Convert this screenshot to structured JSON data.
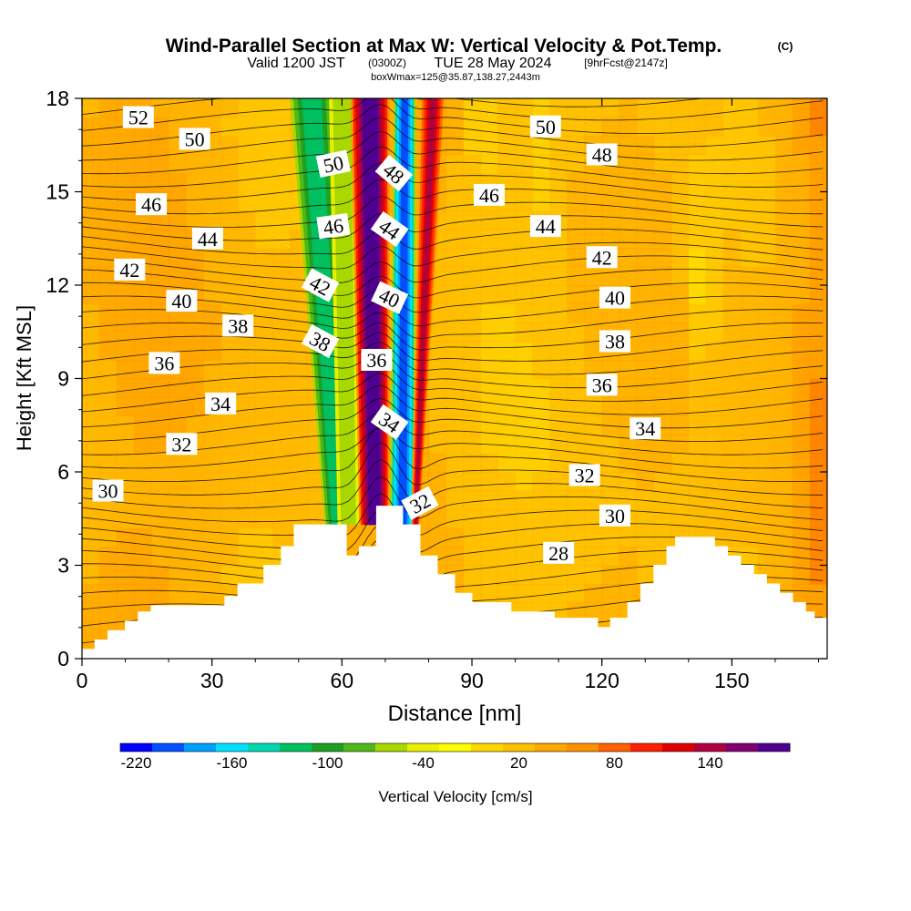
{
  "chart_data": {
    "type": "heatmap",
    "title": "Wind-Parallel Section at Max W: Vertical Velocity & Pot.Temp.",
    "title_suffix": "(C)",
    "subtitle": {
      "valid_prefix": "Valid 1200 JST",
      "valid_zulu": "(0300Z)",
      "valid_date": "TUE 28 May 2024",
      "forecast": "[9hrFcst@2147z]"
    },
    "box_info": "boxWmax=125@35.87,138.27,2443m",
    "xlabel": "Distance [nm]",
    "ylabel": "Height [Kft MSL]",
    "xlim": [
      0,
      172
    ],
    "ylim": [
      0,
      18
    ],
    "x_ticks": [
      "0",
      "30",
      "60",
      "90",
      "120",
      "150"
    ],
    "y_ticks": [
      "0",
      "3",
      "6",
      "9",
      "12",
      "15",
      "18"
    ],
    "colorbar": {
      "label": "Vertical Velocity [cm/s]",
      "tick_labels": [
        "-220",
        "-160",
        "-100",
        "-40",
        "20",
        "80",
        "140"
      ],
      "colors": [
        "#0000ff",
        "#0050ff",
        "#00a0ff",
        "#00e0ff",
        "#00d8b0",
        "#00c060",
        "#20a020",
        "#50b818",
        "#a8d800",
        "#e8f000",
        "#ffff00",
        "#ffd800",
        "#ffc000",
        "#ffa800",
        "#ff9000",
        "#ff6000",
        "#ff2000",
        "#e00000",
        "#b00040",
        "#800070",
        "#500090"
      ]
    },
    "terrain": [
      [
        0,
        0.3
      ],
      [
        3,
        0.3
      ],
      [
        3,
        0.6
      ],
      [
        6,
        0.6
      ],
      [
        6,
        0.9
      ],
      [
        10,
        0.9
      ],
      [
        10,
        1.2
      ],
      [
        13,
        1.2
      ],
      [
        13,
        1.5
      ],
      [
        16,
        1.5
      ],
      [
        16,
        1.7
      ],
      [
        33,
        1.7
      ],
      [
        33,
        2.0
      ],
      [
        36,
        2.0
      ],
      [
        36,
        2.4
      ],
      [
        42,
        2.4
      ],
      [
        42,
        3.0
      ],
      [
        46,
        3.0
      ],
      [
        46,
        3.6
      ],
      [
        49,
        3.6
      ],
      [
        49,
        4.3
      ],
      [
        61,
        4.3
      ],
      [
        61,
        3.3
      ],
      [
        64,
        3.3
      ],
      [
        64,
        3.6
      ],
      [
        68,
        3.6
      ],
      [
        68,
        4.9
      ],
      [
        74,
        4.9
      ],
      [
        74,
        4.3
      ],
      [
        78,
        4.3
      ],
      [
        78,
        3.3
      ],
      [
        82,
        3.3
      ],
      [
        82,
        2.7
      ],
      [
        86,
        2.7
      ],
      [
        86,
        2.1
      ],
      [
        90,
        2.1
      ],
      [
        90,
        1.8
      ],
      [
        99,
        1.8
      ],
      [
        99,
        1.5
      ],
      [
        109,
        1.5
      ],
      [
        109,
        1.3
      ],
      [
        119,
        1.3
      ],
      [
        119,
        1.0
      ],
      [
        122,
        1.0
      ],
      [
        122,
        1.3
      ],
      [
        126,
        1.3
      ],
      [
        126,
        1.8
      ],
      [
        129,
        1.8
      ],
      [
        129,
        2.4
      ],
      [
        132,
        2.4
      ],
      [
        132,
        3.0
      ],
      [
        135,
        3.0
      ],
      [
        135,
        3.6
      ],
      [
        137,
        3.6
      ],
      [
        137,
        3.9
      ],
      [
        146,
        3.9
      ],
      [
        146,
        3.6
      ],
      [
        149,
        3.6
      ],
      [
        149,
        3.3
      ],
      [
        152,
        3.3
      ],
      [
        152,
        3.0
      ],
      [
        155,
        3.0
      ],
      [
        155,
        2.7
      ],
      [
        158,
        2.7
      ],
      [
        158,
        2.4
      ],
      [
        161,
        2.4
      ],
      [
        161,
        2.1
      ],
      [
        164,
        2.1
      ],
      [
        164,
        1.8
      ],
      [
        167,
        1.8
      ],
      [
        167,
        1.5
      ],
      [
        169,
        1.5
      ],
      [
        169,
        1.3
      ],
      [
        172,
        1.3
      ]
    ],
    "updraft_bands": [
      {
        "w": -40,
        "x_top": [
          57,
          63
        ],
        "x_bottom": [
          59,
          64
        ]
      },
      {
        "w": -100,
        "x_top": [
          48,
          58
        ],
        "x_bottom": [
          56,
          62
        ]
      },
      {
        "w": 140,
        "x_top": [
          62,
          71
        ],
        "x_bottom": [
          64,
          71
        ]
      },
      {
        "w": -160,
        "x_top": [
          72,
          77
        ],
        "x_bottom": [
          71,
          77
        ]
      },
      {
        "w": 110,
        "x_top": [
          78,
          84
        ],
        "x_bottom": [
          76,
          78
        ]
      }
    ],
    "isentropes_K_offset": [
      28,
      30,
      32,
      34,
      36,
      38,
      40,
      42,
      44,
      46,
      48,
      50,
      52
    ],
    "contour_labels": [
      {
        "text": "52",
        "x": 13,
        "y": 17.4
      },
      {
        "text": "50",
        "x": 26,
        "y": 16.7
      },
      {
        "text": "50",
        "x": 58,
        "y": 15.9,
        "rot": -12
      },
      {
        "text": "48",
        "x": 72,
        "y": 15.6,
        "rot": 40
      },
      {
        "text": "50",
        "x": 107,
        "y": 17.1
      },
      {
        "text": "48",
        "x": 120,
        "y": 16.2
      },
      {
        "text": "46",
        "x": 94,
        "y": 14.9
      },
      {
        "text": "46",
        "x": 16,
        "y": 14.6
      },
      {
        "text": "44",
        "x": 29,
        "y": 13.5
      },
      {
        "text": "46",
        "x": 58,
        "y": 13.9,
        "rot": -8
      },
      {
        "text": "44",
        "x": 71,
        "y": 13.8,
        "rot": 35
      },
      {
        "text": "44",
        "x": 107,
        "y": 13.9
      },
      {
        "text": "42",
        "x": 11,
        "y": 12.5
      },
      {
        "text": "42",
        "x": 55,
        "y": 12.0,
        "rot": 28
      },
      {
        "text": "40",
        "x": 71,
        "y": 11.6,
        "rot": 25
      },
      {
        "text": "42",
        "x": 120,
        "y": 12.9
      },
      {
        "text": "40",
        "x": 23,
        "y": 11.5
      },
      {
        "text": "40",
        "x": 123,
        "y": 11.6
      },
      {
        "text": "38",
        "x": 36,
        "y": 10.7
      },
      {
        "text": "38",
        "x": 55,
        "y": 10.2,
        "rot": 28
      },
      {
        "text": "38",
        "x": 123,
        "y": 10.2
      },
      {
        "text": "36",
        "x": 19,
        "y": 9.5
      },
      {
        "text": "36",
        "x": 68,
        "y": 9.6
      },
      {
        "text": "36",
        "x": 120,
        "y": 8.8
      },
      {
        "text": "34",
        "x": 32,
        "y": 8.2
      },
      {
        "text": "34",
        "x": 71,
        "y": 7.6,
        "rot": 35
      },
      {
        "text": "34",
        "x": 130,
        "y": 7.4
      },
      {
        "text": "32",
        "x": 23,
        "y": 6.9
      },
      {
        "text": "32",
        "x": 116,
        "y": 5.9
      },
      {
        "text": "32",
        "x": 78,
        "y": 5.0,
        "rot": -28
      },
      {
        "text": "30",
        "x": 6,
        "y": 5.4
      },
      {
        "text": "30",
        "x": 123,
        "y": 4.6
      },
      {
        "text": "28",
        "x": 110,
        "y": 3.4
      }
    ]
  },
  "colors": {
    "background": "#ffffff",
    "contour_line": "#000000",
    "terrain": "#ffffff"
  }
}
